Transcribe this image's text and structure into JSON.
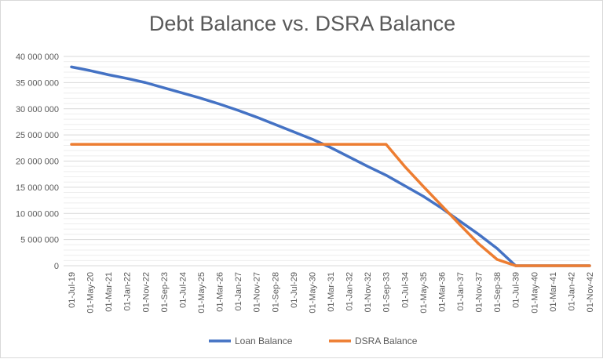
{
  "chart_data": {
    "type": "line",
    "title": "Debt Balance vs. DSRA Balance",
    "xlabel": "",
    "ylabel": "",
    "ylim": [
      0,
      40000000
    ],
    "y_ticks": [
      "0",
      "5 000 000",
      "10 000 000",
      "15 000 000",
      "20 000 000",
      "25 000 000",
      "30 000 000",
      "35 000 000",
      "40 000 000"
    ],
    "y_tick_values": [
      0,
      5000000,
      10000000,
      15000000,
      20000000,
      25000000,
      30000000,
      35000000,
      40000000
    ],
    "categories": [
      "01-Jul-19",
      "01-May-20",
      "01-Mar-21",
      "01-Jan-22",
      "01-Nov-22",
      "01-Sep-23",
      "01-Jul-24",
      "01-May-25",
      "01-Mar-26",
      "01-Jan-27",
      "01-Nov-27",
      "01-Sep-28",
      "01-Jul-29",
      "01-May-30",
      "01-Mar-31",
      "01-Jan-32",
      "01-Nov-32",
      "01-Sep-33",
      "01-Jul-34",
      "01-May-35",
      "01-Mar-36",
      "01-Jan-37",
      "01-Nov-37",
      "01-Sep-38",
      "01-Jul-39",
      "01-May-40",
      "01-Mar-41",
      "01-Jan-42",
      "01-Nov-42"
    ],
    "series": [
      {
        "name": "Loan Balance",
        "color": "#4472c4",
        "values": [
          38000000,
          37300000,
          36500000,
          35800000,
          35000000,
          34000000,
          33000000,
          32000000,
          30900000,
          29700000,
          28400000,
          27000000,
          25600000,
          24200000,
          22600000,
          20800000,
          19000000,
          17300000,
          15300000,
          13300000,
          11000000,
          8500000,
          6000000,
          3300000,
          0,
          0,
          0,
          0,
          0
        ]
      },
      {
        "name": "DSRA Balance",
        "color": "#ed7d31",
        "values": [
          23200000,
          23200000,
          23200000,
          23200000,
          23200000,
          23200000,
          23200000,
          23200000,
          23200000,
          23200000,
          23200000,
          23200000,
          23200000,
          23200000,
          23200000,
          23200000,
          23200000,
          23200000,
          19000000,
          15200000,
          11500000,
          7800000,
          4200000,
          1200000,
          0,
          0,
          0,
          0,
          0
        ]
      }
    ],
    "grid": true,
    "legend_position": "bottom"
  }
}
